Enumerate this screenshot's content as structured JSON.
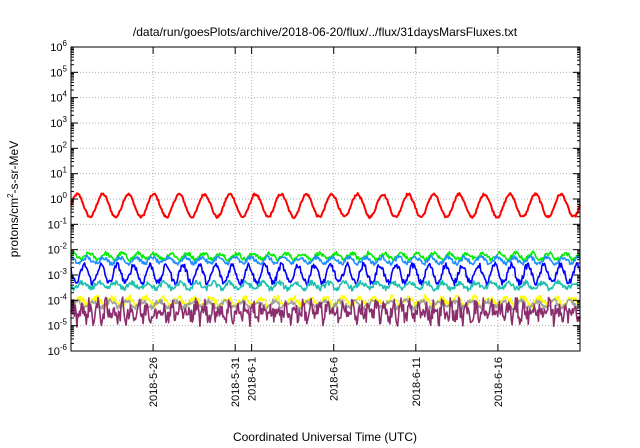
{
  "chart_data": {
    "type": "line",
    "title": "/data/run/goesPlots/archive/2018-06-20/flux/../flux/31daysMarsFluxes.txt",
    "xlabel": "Coordinated Universal Time (UTC)",
    "ylabel": "protons/cm2-s-sr-MeV",
    "ylabel_parts": {
      "pre": "protons/cm",
      "sup": "2",
      "post": "-s-sr-MeV"
    },
    "y_scale": "log",
    "ylim": [
      "1e-6",
      "1e6"
    ],
    "y_ticks": [
      {
        "base": "10",
        "exp": "-6"
      },
      {
        "base": "10",
        "exp": "-5"
      },
      {
        "base": "10",
        "exp": "-4"
      },
      {
        "base": "10",
        "exp": "-3"
      },
      {
        "base": "10",
        "exp": "-2"
      },
      {
        "base": "10",
        "exp": "-1"
      },
      {
        "base": "10",
        "exp": "0"
      },
      {
        "base": "10",
        "exp": "1"
      },
      {
        "base": "10",
        "exp": "2"
      },
      {
        "base": "10",
        "exp": "3"
      },
      {
        "base": "10",
        "exp": "4"
      },
      {
        "base": "10",
        "exp": "5"
      },
      {
        "base": "10",
        "exp": "6"
      }
    ],
    "xlim": [
      "2018-05-21",
      "2018-06-21"
    ],
    "x_ticks": [
      "2018-5-26",
      "2018-5-31",
      "2018-6-1",
      "2018-6-6",
      "2018-6-11",
      "2018-6-16"
    ],
    "grid": true,
    "legend": "none",
    "series": [
      {
        "color": "#ff0000",
        "level": 0.55,
        "amp": 0.45,
        "noise": 0.05,
        "period": 1.55
      },
      {
        "color": "#00ee00",
        "level": 0.0055,
        "amp": 0.12,
        "noise": 0.08,
        "period": 1.0
      },
      {
        "color": "#1e90ff",
        "level": 0.0038,
        "amp": 0.12,
        "noise": 0.08,
        "period": 1.0
      },
      {
        "color": "#0000ff",
        "level": 0.0011,
        "amp": 0.35,
        "noise": 0.12,
        "period": 1.0
      },
      {
        "color": "#20c0b0",
        "level": 0.00038,
        "amp": 0.12,
        "noise": 0.1,
        "period": 1.0
      },
      {
        "color": "#ffff00",
        "level": 9e-05,
        "amp": 0.15,
        "noise": 0.12,
        "period": 1.0
      },
      {
        "color": "#a0a0a0",
        "level": 7e-05,
        "amp": 0.12,
        "noise": 0.1,
        "period": 1.0
      },
      {
        "color": "#8b2e6e",
        "level": 3.5e-05,
        "amp": 0.25,
        "noise": 0.35,
        "period": 0.5
      }
    ]
  }
}
